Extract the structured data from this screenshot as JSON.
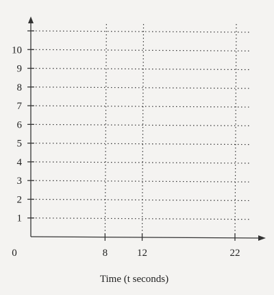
{
  "chart_data": {
    "type": "scatter",
    "title": "",
    "xlabel": "Time (t seconds)",
    "ylabel": "",
    "x_ticks": [
      0,
      8,
      12,
      22
    ],
    "x_tick_labels": [
      "0",
      "8",
      "12",
      "22"
    ],
    "y_ticks": [
      1,
      2,
      3,
      4,
      5,
      6,
      7,
      8,
      9,
      10
    ],
    "y_tick_labels": [
      "1",
      "2",
      "3",
      "4",
      "5",
      "6",
      "7",
      "8",
      "9",
      "10"
    ],
    "xlim": [
      0,
      25
    ],
    "ylim": [
      0,
      11.5
    ],
    "grid": true,
    "series": []
  }
}
